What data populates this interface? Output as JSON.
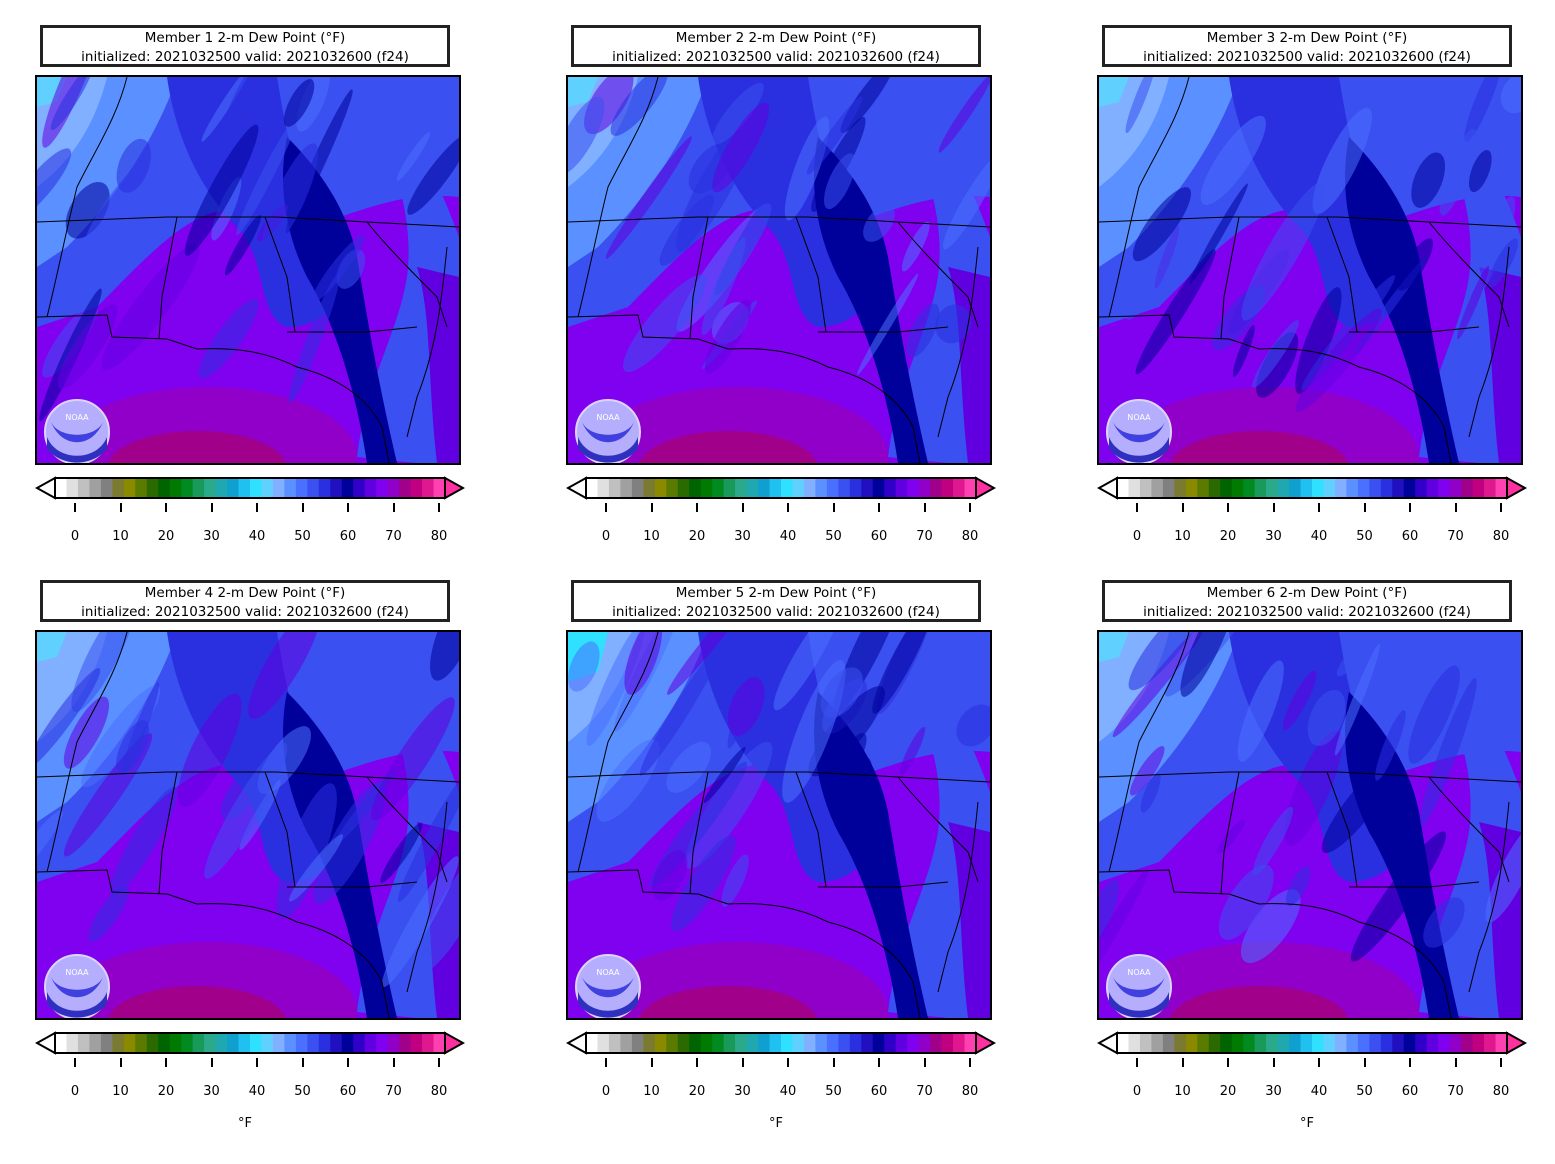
{
  "panels": [
    {
      "title_line1": "Member 1 2-m Dew Point (°F)",
      "title_line2": "initialized: 2021032500 valid: 2021032600 (f24)"
    },
    {
      "title_line1": "Member 2 2-m Dew Point (°F)",
      "title_line2": "initialized: 2021032500 valid: 2021032600 (f24)"
    },
    {
      "title_line1": "Member 3 2-m Dew Point (°F)",
      "title_line2": "initialized: 2021032500 valid: 2021032600 (f24)"
    },
    {
      "title_line1": "Member 4 2-m Dew Point (°F)",
      "title_line2": "initialized: 2021032500 valid: 2021032600 (f24)"
    },
    {
      "title_line1": "Member 5 2-m Dew Point (°F)",
      "title_line2": "initialized: 2021032500 valid: 2021032600 (f24)"
    },
    {
      "title_line1": "Member 6 2-m Dew Point (°F)",
      "title_line2": "initialized: 2021032500 valid: 2021032600 (f24)"
    }
  ],
  "colorbar": {
    "ticks": [
      "0",
      "10",
      "20",
      "30",
      "40",
      "50",
      "60",
      "70",
      "80"
    ],
    "unit": "°F",
    "colors": [
      "#ffffff",
      "#e0e0e0",
      "#c0c0c0",
      "#a0a0a0",
      "#808080",
      "#7a7a30",
      "#8a8a00",
      "#5a7a00",
      "#2a6a00",
      "#006400",
      "#007a00",
      "#008a20",
      "#1a9a5a",
      "#2aaa8a",
      "#20a8b0",
      "#10a0d0",
      "#20c0f0",
      "#30e0ff",
      "#60d0ff",
      "#80b0ff",
      "#5a90ff",
      "#4a70ff",
      "#3a50f0",
      "#2a30e0",
      "#2010c0",
      "#00009a",
      "#3000c8",
      "#6000e0",
      "#8000f0",
      "#9000c8",
      "#a0008a",
      "#c00080",
      "#e01890",
      "#ff40b0"
    ],
    "under_color": "#ffffff",
    "over_color": "#ff30a0"
  },
  "logo_text": "NOAA"
}
